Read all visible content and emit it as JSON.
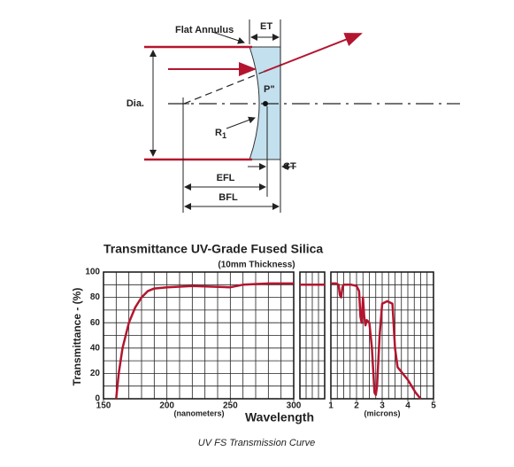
{
  "diagram": {
    "flat_annulus": "Flat Annulus",
    "et": "ET",
    "p": "P\"",
    "dia": "Dia.",
    "r1": {
      "main": "R",
      "sub": "1"
    },
    "efl": "EFL",
    "bfl": "BFL",
    "ct": "CT"
  },
  "caption": "UV FS Transmission Curve",
  "chart_data": [
    {
      "type": "line",
      "title": "Transmittance UV-Grade Fused Silica",
      "subtitle": "(10mm Thickness)",
      "y_label": "Transmittance - (%)",
      "x_label": "Wavelength",
      "x_unit": "(nanometers)",
      "xlim": [
        150,
        300
      ],
      "xticks": [
        150,
        200,
        250,
        300
      ],
      "minor_xticks": [
        160,
        170,
        180,
        190,
        210,
        220,
        230,
        240,
        260,
        270,
        280,
        290
      ],
      "ylim": [
        0,
        100
      ],
      "yticks": [
        0,
        20,
        40,
        60,
        80,
        100
      ],
      "minor_yticks": [
        10,
        30,
        50,
        70,
        90
      ],
      "grid": true,
      "series": [
        {
          "color": "#b3152f",
          "x": [
            160,
            162,
            165,
            170,
            175,
            180,
            185,
            190,
            200,
            220,
            250,
            260,
            280,
            300
          ],
          "values": [
            0,
            20,
            40,
            60,
            72,
            80,
            85,
            87,
            88,
            89,
            88,
            90,
            91,
            91
          ]
        }
      ]
    },
    {
      "type": "line",
      "ylim": [
        0,
        100
      ],
      "yticks": [
        0,
        20,
        40,
        60,
        80,
        100
      ],
      "minor_yticks": [
        10,
        30,
        50,
        70,
        90
      ],
      "grid": true,
      "series": [
        {
          "color": "#b3152f",
          "values": [
            90,
            90
          ]
        }
      ]
    },
    {
      "type": "line",
      "x_unit": "(microns)",
      "xlim": [
        1,
        5
      ],
      "xticks": [
        1,
        2,
        3,
        4,
        5
      ],
      "minor_xticks": [
        1.25,
        1.5,
        1.75,
        2.25,
        2.5,
        2.75,
        3.25,
        3.5,
        3.75,
        4.25,
        4.5,
        4.75
      ],
      "ylim": [
        0,
        100
      ],
      "yticks": [
        0,
        20,
        40,
        60,
        80,
        100
      ],
      "minor_yticks": [
        10,
        30,
        50,
        70,
        90
      ],
      "grid": true,
      "series": [
        {
          "color": "#b3152f",
          "x": [
            1.0,
            1.2,
            1.3,
            1.35,
            1.4,
            1.45,
            1.5,
            1.8,
            2.0,
            2.1,
            2.15,
            2.2,
            2.25,
            2.3,
            2.35,
            2.4,
            2.5,
            2.6,
            2.7,
            2.75,
            2.8,
            2.9,
            3.0,
            3.2,
            3.4,
            3.5,
            3.6,
            4.0,
            4.3,
            4.5
          ],
          "values": [
            91,
            91,
            90,
            82,
            80,
            88,
            90,
            90,
            89,
            85,
            65,
            60,
            80,
            65,
            58,
            62,
            60,
            40,
            5,
            3,
            10,
            50,
            75,
            77,
            75,
            40,
            25,
            15,
            5,
            0
          ]
        }
      ]
    }
  ]
}
